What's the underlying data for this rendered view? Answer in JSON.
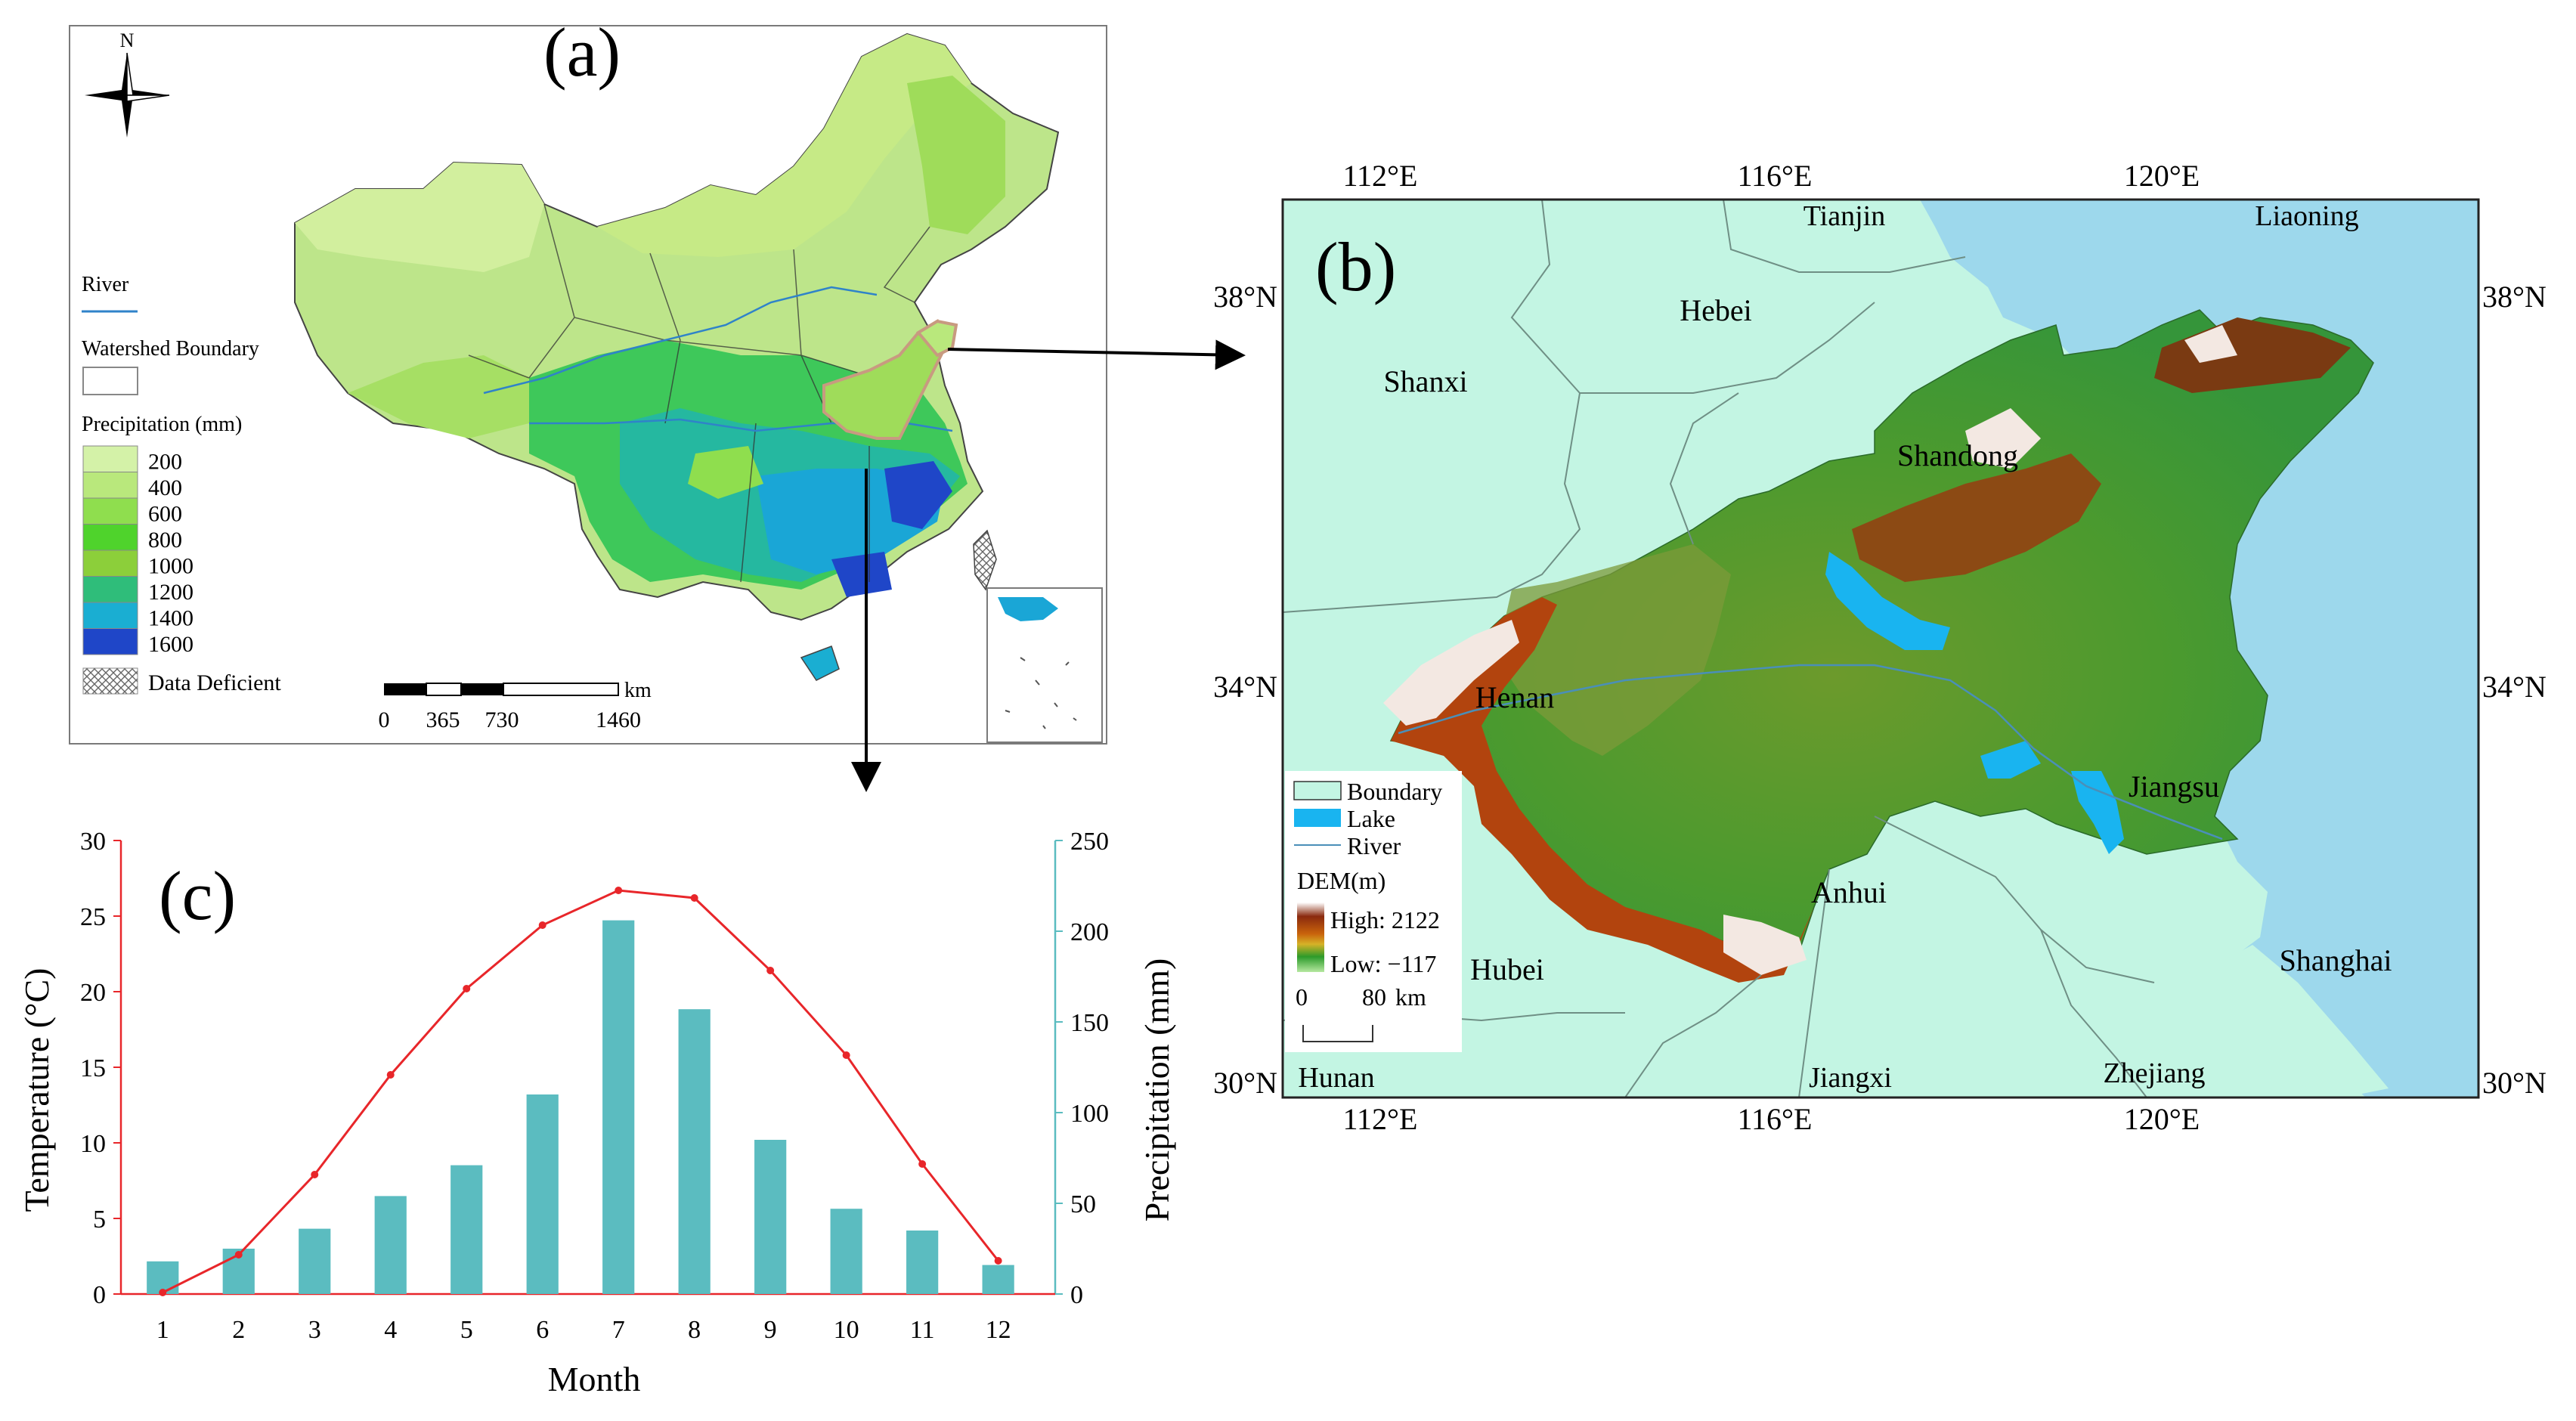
{
  "panel_a": {
    "label": "(a)",
    "north_letter": "N",
    "legend": {
      "river_label": "River",
      "watershed_label": "Watershed Boundary",
      "precip_title": "Precipitation (mm)",
      "classes": [
        {
          "label": "200",
          "color": "#d4f2a8"
        },
        {
          "label": "400",
          "color": "#b9e87c"
        },
        {
          "label": "600",
          "color": "#8fde4e"
        },
        {
          "label": "800",
          "color": "#4fd32c"
        },
        {
          "label": "1000",
          "color": "#8ccf3a"
        },
        {
          "label": "1200",
          "color": "#2fbd7a"
        },
        {
          "label": "1400",
          "color": "#1aaed2"
        },
        {
          "label": "1600",
          "color": "#1f46c8"
        }
      ],
      "deficient_label": "Data Deficient"
    },
    "scale": {
      "unit": "km",
      "ticks": [
        "0",
        "365",
        "730",
        "1460"
      ]
    }
  },
  "panel_b": {
    "label": "(b)",
    "lon_labels": [
      "112°E",
      "116°E",
      "120°E"
    ],
    "lat_labels": [
      "38°N",
      "34°N",
      "30°N"
    ],
    "provinces": [
      "Tianjin",
      "Liaoning",
      "Hebei",
      "Shanxi",
      "Shandong",
      "Henan",
      "Jiangsu",
      "Anhui",
      "Hubei",
      "Shanghai",
      "Hunan",
      "Jiangxi",
      "Zhejiang"
    ],
    "legend": {
      "boundary": "Boundary",
      "lake": "Lake",
      "river": "River",
      "dem_title": "DEM(m)",
      "high": "High: 2122",
      "low": "Low: −117",
      "scale_ticks": [
        "0",
        "80"
      ],
      "scale_unit": "km"
    },
    "colors": {
      "sea": "#9dd8ec",
      "land": "#c3f5e3",
      "lake": "#19b4f0"
    }
  },
  "chart_data": {
    "type": "bar",
    "label": "(c)",
    "xlabel": "Month",
    "ylabel_left": "Temperature (°C)",
    "ylabel_right": "Precipitation (mm)",
    "categories": [
      "1",
      "2",
      "3",
      "4",
      "5",
      "6",
      "7",
      "8",
      "9",
      "10",
      "11",
      "12"
    ],
    "series": [
      {
        "type": "bar",
        "axis": "right",
        "color": "#5bbcc0",
        "values": [
          18,
          25,
          36,
          54,
          71,
          110,
          206,
          157,
          85,
          47,
          35,
          16
        ]
      },
      {
        "type": "line",
        "axis": "left",
        "color": "#e8262a",
        "values": [
          0.1,
          2.6,
          7.9,
          14.5,
          20.2,
          24.4,
          26.7,
          26.2,
          21.4,
          15.8,
          8.6,
          2.2
        ]
      }
    ],
    "ylim_left": [
      0,
      30
    ],
    "ylim_right": [
      0,
      250
    ],
    "yticks_left": [
      "0",
      "5",
      "10",
      "15",
      "20",
      "25",
      "30"
    ],
    "yticks_right": [
      "0",
      "50",
      "100",
      "150",
      "200",
      "250"
    ]
  }
}
